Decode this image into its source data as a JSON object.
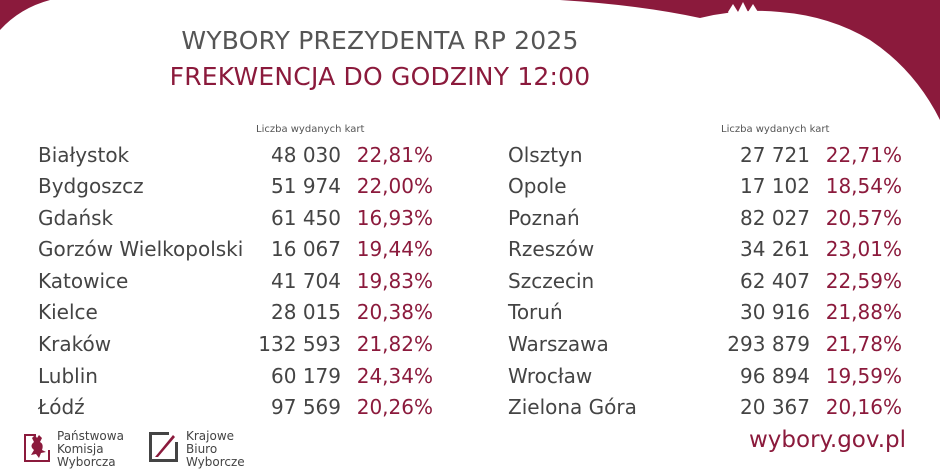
{
  "header": {
    "title": "WYBORY PREZYDENTA RP 2025",
    "subtitle": "FREKWENCJA DO GODZINY 12:00"
  },
  "column_header": "Liczba wydanych kart",
  "colors": {
    "accent": "#8b1a3c",
    "text": "#444444",
    "header_text": "#555555"
  },
  "left_rows": [
    {
      "city": "Białystok",
      "count": "48 030",
      "pct": "22,81%"
    },
    {
      "city": "Bydgoszcz",
      "count": "51 974",
      "pct": "22,00%"
    },
    {
      "city": "Gdańsk",
      "count": "61 450",
      "pct": "16,93%"
    },
    {
      "city": "Gorzów Wielkopolski",
      "count": "16 067",
      "pct": "19,44%"
    },
    {
      "city": "Katowice",
      "count": "41 704",
      "pct": "19,83%"
    },
    {
      "city": "Kielce",
      "count": "28 015",
      "pct": "20,38%"
    },
    {
      "city": "Kraków",
      "count": "132 593",
      "pct": "21,82%"
    },
    {
      "city": "Lublin",
      "count": "60 179",
      "pct": "24,34%"
    },
    {
      "city": "Łódź",
      "count": "97 569",
      "pct": "20,26%"
    }
  ],
  "right_rows": [
    {
      "city": "Olsztyn",
      "count": "27 721",
      "pct": "22,71%"
    },
    {
      "city": "Opole",
      "count": "17 102",
      "pct": "18,54%"
    },
    {
      "city": "Poznań",
      "count": "82 027",
      "pct": "20,57%"
    },
    {
      "city": "Rzeszów",
      "count": "34 261",
      "pct": "23,01%"
    },
    {
      "city": "Szczecin",
      "count": "62 407",
      "pct": "22,59%"
    },
    {
      "city": "Toruń",
      "count": "30 916",
      "pct": "21,88%"
    },
    {
      "city": "Warszawa",
      "count": "293 879",
      "pct": "21,78%"
    },
    {
      "city": "Wrocław",
      "count": "96 894",
      "pct": "19,59%"
    },
    {
      "city": "Zielona Góra",
      "count": "20 367",
      "pct": "20,16%"
    }
  ],
  "footer": {
    "pkw": {
      "line1": "Państwowa",
      "line2": "Komisja",
      "line3": "Wyborcza"
    },
    "kbw": {
      "line1": "Krajowe",
      "line2": "Biuro",
      "line3": "Wyborcze"
    },
    "website": "wybory.gov.pl"
  }
}
